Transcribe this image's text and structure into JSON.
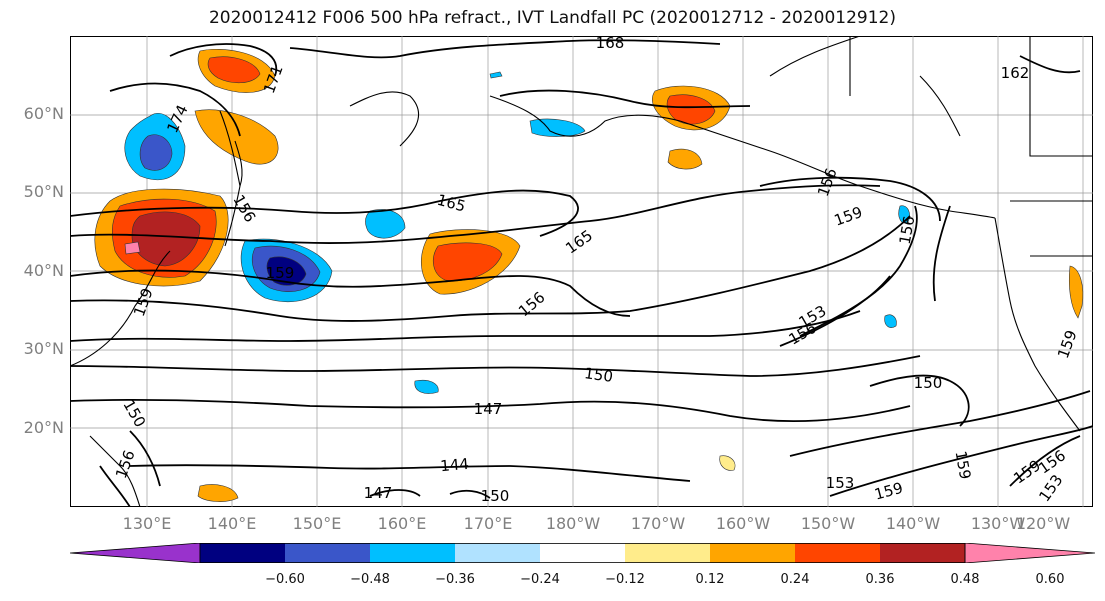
{
  "title": "2020012412 F006 500 hPa refract., IVT Landfall PC (2020012712 - 2020012912)",
  "latitude_labels": [
    "60°N",
    "50°N",
    "40°N",
    "30°N",
    "20°N"
  ],
  "longitude_labels": [
    "130°E",
    "140°E",
    "150°E",
    "160°E",
    "170°E",
    "180°W",
    "170°W",
    "160°W",
    "150°W",
    "140°W",
    "130°W",
    "120°W"
  ],
  "contour_labels": [
    "168",
    "171",
    "174",
    "162",
    "165",
    "165",
    "156",
    "159",
    "156",
    "159",
    "159",
    "156",
    "153",
    "156",
    "156",
    "150",
    "150",
    "147",
    "144",
    "150",
    "147",
    "156",
    "150",
    "153",
    "159",
    "159",
    "159",
    "156",
    "153",
    "159"
  ],
  "colorbar": {
    "tick_labels": [
      "−0.60",
      "−0.48",
      "−0.36",
      "−0.24",
      "−0.12",
      "0.12",
      "0.24",
      "0.36",
      "0.48",
      "0.60"
    ],
    "colors": [
      "#9932cc",
      "#000080",
      "#3a56c9",
      "#00bfff",
      "#b0e2ff",
      "#ffffff",
      "#ffec8b",
      "#ffa500",
      "#ff4500",
      "#b22222",
      "#ff82ab"
    ]
  },
  "colors": {
    "land_outline": "#000000",
    "contour": "#000000",
    "gridline": "#9a9a9a"
  }
}
